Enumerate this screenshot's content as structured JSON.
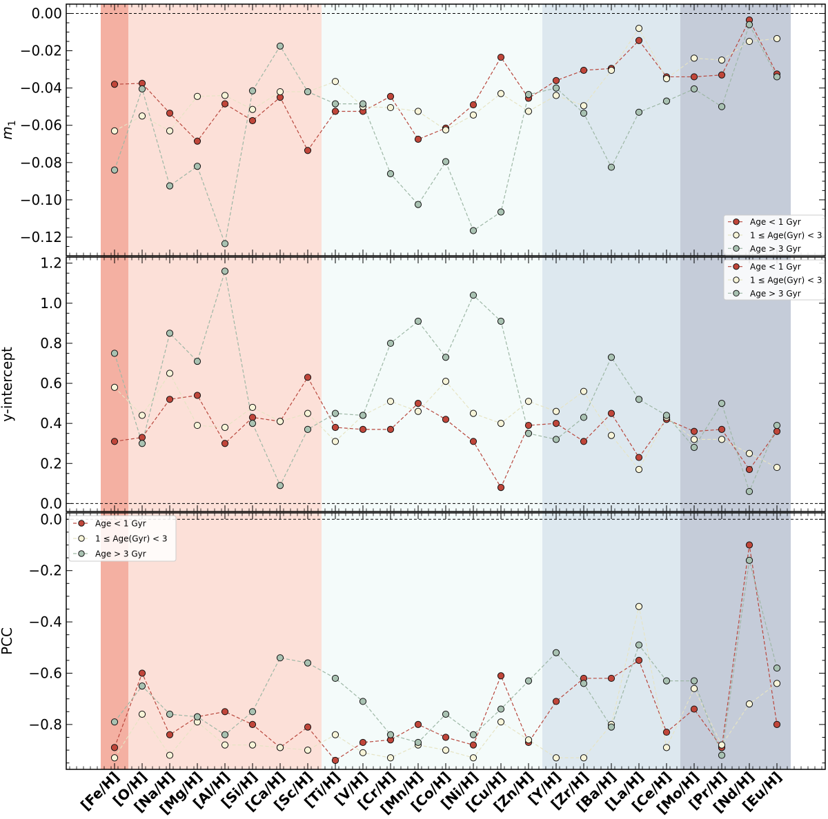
{
  "chart_data": [
    {
      "type": "line",
      "panel": "top",
      "ylabel": "m",
      "ylabel_sub": "1",
      "ylim": [
        -0.13,
        0.005
      ],
      "yticks": [
        0.0,
        -0.02,
        -0.04,
        -0.06,
        -0.08,
        -0.1,
        -0.12
      ],
      "ytick_labels": [
        "0.00",
        "−0.02",
        "−0.04",
        "−0.06",
        "−0.08",
        "−0.10",
        "−0.12"
      ],
      "reference_line": 0,
      "legend_position": "bottom-right",
      "series": [
        {
          "name": "Age < 1 Gyr",
          "values": [
            -0.038,
            -0.0375,
            -0.0535,
            -0.0685,
            -0.0485,
            -0.0575,
            -0.045,
            -0.0735,
            -0.0525,
            -0.0525,
            -0.0445,
            -0.0675,
            -0.0615,
            -0.049,
            -0.0235,
            -0.0455,
            -0.036,
            -0.0305,
            -0.0295,
            -0.0145,
            -0.034,
            -0.034,
            -0.033,
            -0.0035,
            -0.0325
          ]
        },
        {
          "name": "1 ≤ Age(Gyr) < 3",
          "values": [
            -0.063,
            -0.055,
            -0.063,
            -0.0445,
            -0.044,
            -0.0515,
            -0.042,
            -0.042,
            -0.0365,
            -0.05,
            -0.0505,
            -0.0525,
            -0.0625,
            -0.0545,
            -0.043,
            -0.0525,
            -0.044,
            -0.0495,
            -0.0305,
            -0.008,
            -0.035,
            -0.024,
            -0.025,
            -0.015,
            -0.0135
          ]
        },
        {
          "name": "Age > 3 Gyr",
          "values": [
            -0.084,
            -0.0405,
            -0.0925,
            -0.082,
            -0.1235,
            -0.0415,
            -0.0175,
            -0.042,
            -0.0485,
            -0.0485,
            -0.086,
            -0.1025,
            -0.0795,
            -0.1165,
            -0.1065,
            -0.0435,
            -0.04,
            -0.0535,
            -0.0825,
            -0.053,
            -0.047,
            -0.0405,
            -0.05,
            -0.006,
            -0.034
          ]
        }
      ]
    },
    {
      "type": "line",
      "panel": "middle",
      "ylabel": "y-intercept",
      "ylim": [
        -0.04,
        1.23
      ],
      "yticks": [
        0.0,
        0.2,
        0.4,
        0.6,
        0.8,
        1.0,
        1.2
      ],
      "ytick_labels": [
        "0.0",
        "0.2",
        "0.4",
        "0.6",
        "0.8",
        "1.0",
        "1.2"
      ],
      "reference_line": 0,
      "legend_position": "top-right",
      "series": [
        {
          "name": "Age < 1 Gyr",
          "values": [
            0.31,
            0.33,
            0.52,
            0.54,
            0.3,
            0.43,
            0.41,
            0.63,
            0.38,
            0.37,
            0.37,
            0.5,
            0.42,
            0.31,
            0.08,
            0.39,
            0.4,
            0.31,
            0.45,
            0.23,
            0.42,
            0.36,
            0.37,
            0.17,
            0.36
          ]
        },
        {
          "name": "1 ≤ Age(Gyr) < 3",
          "values": [
            0.58,
            0.44,
            0.65,
            0.39,
            0.38,
            0.48,
            0.41,
            0.45,
            0.31,
            0.44,
            0.51,
            0.46,
            0.61,
            0.45,
            0.4,
            0.51,
            0.46,
            0.56,
            0.34,
            0.17,
            0.43,
            0.32,
            0.32,
            0.25,
            0.18
          ]
        },
        {
          "name": "Age > 3 Gyr",
          "values": [
            0.75,
            0.3,
            0.85,
            0.71,
            1.16,
            0.4,
            0.09,
            0.37,
            0.45,
            0.44,
            0.8,
            0.91,
            0.73,
            1.04,
            0.91,
            0.35,
            0.32,
            0.43,
            0.73,
            0.52,
            0.44,
            0.28,
            0.5,
            0.06,
            0.39
          ]
        }
      ]
    },
    {
      "type": "line",
      "panel": "bottom",
      "ylabel": "PCC",
      "ylim": [
        -0.975,
        0.025
      ],
      "yticks": [
        0.0,
        -0.2,
        -0.4,
        -0.6,
        -0.8
      ],
      "ytick_labels": [
        "0.0",
        "−0.2",
        "−0.4",
        "−0.6",
        "−0.8"
      ],
      "reference_line": 0,
      "legend_position": "top-left",
      "categories": [
        "[Fe/H]",
        "[O/H]",
        "[Na/H]",
        "[Mg/H]",
        "[Al/H]",
        "[Si/H]",
        "[Ca/H]",
        "[Sc/H]",
        "[Ti/H]",
        "[V/H]",
        "[Cr/H]",
        "[Mn/H]",
        "[Co/H]",
        "[Ni/H]",
        "[Cu/H]",
        "[Zn/H]",
        "[Y/H]",
        "[Zr/H]",
        "[Ba/H]",
        "[La/H]",
        "[Ce/H]",
        "[Mo/H]",
        "[Pr/H]",
        "[Nd/H]",
        "[Eu/H]"
      ],
      "series": [
        {
          "name": "Age < 1 Gyr",
          "values": [
            -0.89,
            -0.6,
            -0.84,
            -0.77,
            -0.75,
            -0.8,
            -0.89,
            -0.81,
            -0.94,
            -0.87,
            -0.86,
            -0.8,
            -0.85,
            -0.88,
            -0.61,
            -0.87,
            -0.71,
            -0.62,
            -0.62,
            -0.55,
            -0.83,
            -0.74,
            -0.89,
            -0.1,
            -0.8
          ]
        },
        {
          "name": "1 ≤ Age(Gyr) < 3",
          "values": [
            -0.93,
            -0.76,
            -0.92,
            -0.79,
            -0.88,
            -0.88,
            -0.89,
            -0.9,
            -0.84,
            -0.91,
            -0.93,
            -0.88,
            -0.9,
            -0.93,
            -0.79,
            -0.86,
            -0.93,
            -0.93,
            -0.8,
            -0.34,
            -0.89,
            -0.66,
            -0.88,
            -0.72,
            -0.64
          ]
        },
        {
          "name": "Age > 3 Gyr",
          "values": [
            -0.79,
            -0.65,
            -0.76,
            -0.77,
            -0.84,
            -0.75,
            -0.54,
            -0.56,
            -0.62,
            -0.71,
            -0.84,
            -0.87,
            -0.76,
            -0.84,
            -0.74,
            -0.63,
            -0.52,
            -0.64,
            -0.81,
            -0.49,
            -0.63,
            -0.63,
            -0.92,
            -0.16,
            -0.58
          ]
        }
      ]
    }
  ],
  "legend": {
    "labels": [
      "Age < 1 Gyr",
      "1 ≤ Age(Gyr) < 3",
      "Age > 3 Gyr"
    ]
  },
  "colors": {
    "series": [
      "#c0463a",
      "#f7f4d8",
      "#a9c2b2"
    ],
    "series_lines": [
      "#b8473d",
      "#e6e4c4",
      "#9db7a5"
    ],
    "bands": [
      "#f4b0a2",
      "#fce0d8",
      "#f4fbfa",
      "#dde8ef",
      "#c5ccd9"
    ]
  },
  "band_groups": {
    "starts": [
      0,
      1,
      8,
      16,
      21
    ],
    "ends": [
      0,
      7,
      15,
      20,
      24
    ]
  }
}
